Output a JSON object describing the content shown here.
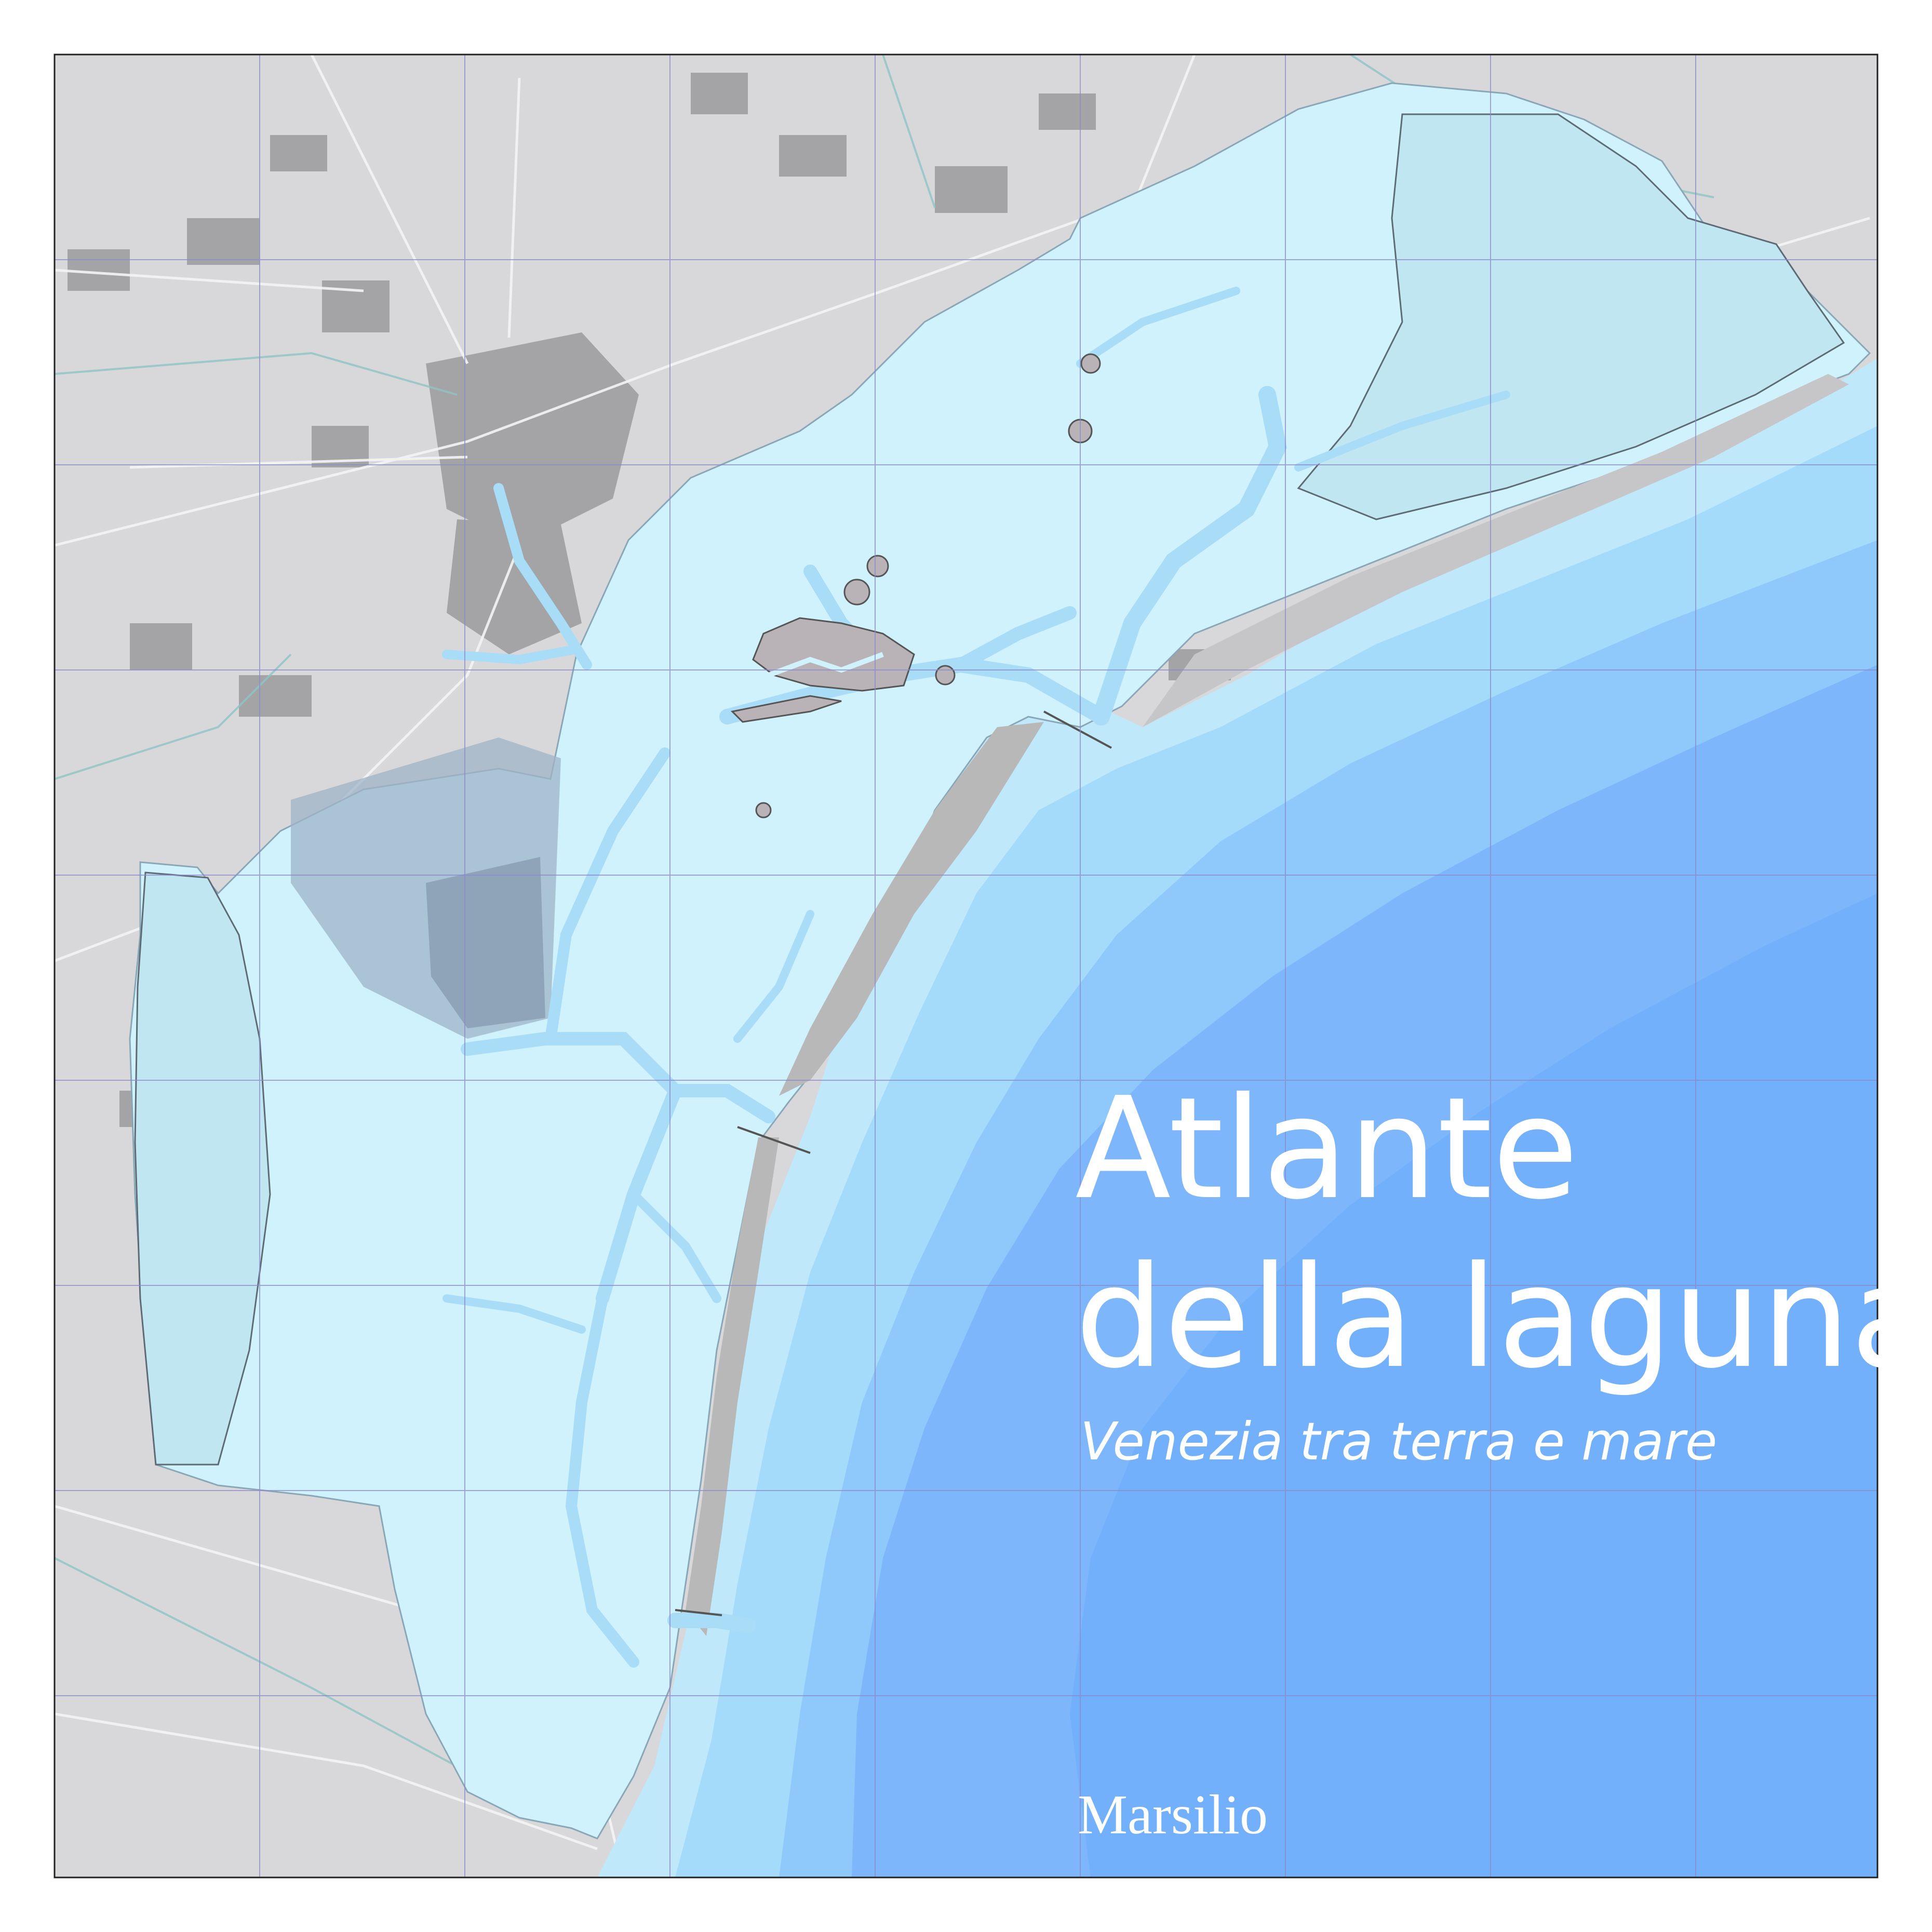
{
  "cover": {
    "title_line_1": "Atlante",
    "title_line_2": "della laguna",
    "subtitle": "Venezia tra terra e mare",
    "publisher": "Marsilio"
  },
  "colors": {
    "land": "#d8d8da",
    "urban": "#9b9b9d",
    "lagoon": "#cff2fd",
    "channel": "#a8dcf7",
    "fish_farms": "#c0e6f2",
    "sea_shallow": "#bfe8fb",
    "sea_mid": "#8fd0f8",
    "sea_deep": "#7db6fb",
    "grid": "#8a8acb",
    "border": "#222222"
  },
  "icons": {
    "map": "map-of-venetian-lagoon"
  }
}
